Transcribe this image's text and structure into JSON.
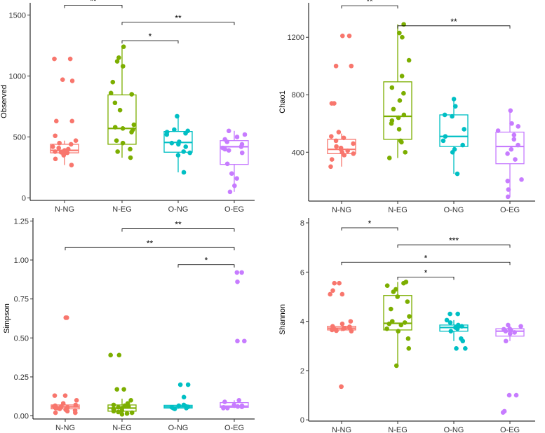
{
  "colors": {
    "N-NG": "#F8766D",
    "N-EG": "#7CAE00",
    "O-NG": "#00BFC4",
    "O-EG": "#C77CFF"
  },
  "chart_data": [
    {
      "type": "box",
      "ylabel": "Observed",
      "categories": [
        "N-NG",
        "N-EG",
        "O-NG",
        "O-EG"
      ],
      "ylim": [
        -20,
        1600
      ],
      "yticks": [
        0,
        500,
        1000,
        1500
      ],
      "yticklabels": [
        "0",
        "500",
        "1000",
        "1500"
      ],
      "boxes": [
        {
          "q1": 370,
          "median": 390,
          "q3": 440,
          "low": 270,
          "high": 470
        },
        {
          "q1": 440,
          "median": 570,
          "q3": 845,
          "low": 330,
          "high": 1240
        },
        {
          "q1": 375,
          "median": 455,
          "q3": 545,
          "low": 210,
          "high": 670
        },
        {
          "q1": 275,
          "median": 420,
          "q3": 470,
          "low": 50,
          "high": 550
        }
      ],
      "points": [
        [
          1140,
          1140,
          970,
          960,
          630,
          630,
          510,
          470,
          450,
          440,
          420,
          410,
          400,
          390,
          380,
          375,
          370,
          360,
          350,
          320,
          270
        ],
        [
          1240,
          1150,
          1120,
          1080,
          950,
          860,
          850,
          780,
          720,
          600,
          580,
          570,
          560,
          540,
          470,
          450,
          400,
          380,
          330
        ],
        [
          670,
          560,
          550,
          540,
          530,
          520,
          460,
          450,
          440,
          420,
          380,
          370,
          350,
          210
        ],
        [
          550,
          520,
          500,
          480,
          460,
          440,
          420,
          410,
          400,
          390,
          370,
          280,
          200,
          160,
          100,
          50
        ]
      ],
      "comparisons": [
        {
          "from": "N-NG",
          "to": "N-EG",
          "label": "**",
          "y": 1580
        },
        {
          "from": "N-EG",
          "to": "O-EG",
          "label": "**",
          "y": 1440
        },
        {
          "from": "N-EG",
          "to": "O-NG",
          "label": "*",
          "y": 1290
        }
      ]
    },
    {
      "type": "box",
      "ylabel": "Chao1",
      "categories": [
        "N-NG",
        "N-EG",
        "O-NG",
        "O-EG"
      ],
      "ylim": [
        60,
        1440
      ],
      "yticks": [
        400,
        800,
        1200
      ],
      "yticklabels": [
        "400",
        "800",
        "1200"
      ],
      "boxes": [
        {
          "q1": 390,
          "median": 420,
          "q3": 490,
          "low": 300,
          "high": 530
        },
        {
          "q1": 490,
          "median": 650,
          "q3": 890,
          "low": 360,
          "high": 1290
        },
        {
          "q1": 440,
          "median": 510,
          "q3": 660,
          "low": 250,
          "high": 770
        },
        {
          "q1": 320,
          "median": 440,
          "q3": 540,
          "low": 90,
          "high": 690
        }
      ],
      "points": [
        [
          1210,
          1210,
          1000,
          1000,
          740,
          740,
          540,
          510,
          500,
          480,
          460,
          440,
          430,
          420,
          410,
          400,
          390,
          380,
          350,
          300
        ],
        [
          1290,
          1230,
          1200,
          1040,
          930,
          850,
          810,
          760,
          700,
          660,
          640,
          620,
          600,
          560,
          480,
          470,
          400,
          360
        ],
        [
          770,
          720,
          660,
          650,
          560,
          510,
          480,
          450,
          420,
          400,
          250
        ],
        [
          690,
          600,
          580,
          550,
          520,
          490,
          450,
          420,
          390,
          350,
          210,
          200,
          140,
          90
        ]
      ],
      "comparisons": [
        {
          "from": "N-NG",
          "to": "N-EG",
          "label": "**",
          "y": 1420
        },
        {
          "from": "N-EG",
          "to": "O-EG",
          "label": "**",
          "y": 1280
        }
      ]
    },
    {
      "type": "box",
      "ylabel": "Simpson",
      "categories": [
        "N-NG",
        "N-EG",
        "O-NG",
        "O-EG"
      ],
      "ylim": [
        -0.02,
        1.27
      ],
      "yticks": [
        0.0,
        0.25,
        0.5,
        0.75,
        1.0,
        1.25
      ],
      "yticklabels": [
        "0.00",
        "0.25",
        "0.50",
        "0.75",
        "1.00",
        "1.25"
      ],
      "boxes": [
        {
          "q1": 0.045,
          "median": 0.058,
          "q3": 0.07,
          "low": 0.03,
          "high": 0.075
        },
        {
          "q1": 0.03,
          "median": 0.05,
          "q3": 0.07,
          "low": 0.01,
          "high": 0.11
        },
        {
          "q1": 0.05,
          "median": 0.058,
          "q3": 0.068,
          "low": 0.045,
          "high": 0.075
        },
        {
          "q1": 0.055,
          "median": 0.062,
          "q3": 0.085,
          "low": 0.05,
          "high": 0.1
        }
      ],
      "points": [
        [
          0.63,
          0.63,
          0.13,
          0.13,
          0.1,
          0.08,
          0.07,
          0.065,
          0.06,
          0.06,
          0.055,
          0.05,
          0.05,
          0.045,
          0.04,
          0.035,
          0.03,
          0.02,
          0.02
        ],
        [
          0.39,
          0.39,
          0.17,
          0.17,
          0.1,
          0.08,
          0.07,
          0.065,
          0.06,
          0.055,
          0.05,
          0.045,
          0.04,
          0.035,
          0.03,
          0.025,
          0.02,
          0.015,
          0.01
        ],
        [
          0.2,
          0.2,
          0.12,
          0.07,
          0.065,
          0.06,
          0.058,
          0.055,
          0.05,
          0.05,
          0.045
        ],
        [
          0.92,
          0.92,
          0.86,
          0.48,
          0.48,
          0.1,
          0.09,
          0.07,
          0.065,
          0.06,
          0.058,
          0.055,
          0.05,
          0.05
        ]
      ],
      "comparisons": [
        {
          "from": "N-EG",
          "to": "O-EG",
          "label": "**",
          "y": 1.2
        },
        {
          "from": "N-NG",
          "to": "O-EG",
          "label": "**",
          "y": 1.08
        },
        {
          "from": "O-NG",
          "to": "O-EG",
          "label": "*",
          "y": 0.97
        }
      ]
    },
    {
      "type": "box",
      "ylabel": "Shannon",
      "categories": [
        "N-NG",
        "N-EG",
        "O-NG",
        "O-EG"
      ],
      "ylim": [
        -0.05,
        8.2
      ],
      "yticks": [
        0,
        2,
        4,
        6,
        8
      ],
      "yticklabels": [
        "0",
        "2",
        "4",
        "6",
        "8"
      ],
      "boxes": [
        {
          "q1": 3.65,
          "median": 3.72,
          "q3": 3.8,
          "low": 3.6,
          "high": 3.85
        },
        {
          "q1": 3.65,
          "median": 3.92,
          "q3": 5.05,
          "low": 2.2,
          "high": 5.6
        },
        {
          "q1": 3.6,
          "median": 3.75,
          "q3": 3.85,
          "low": 3.2,
          "high": 4.05
        },
        {
          "q1": 3.4,
          "median": 3.6,
          "q3": 3.7,
          "low": 3.2,
          "high": 3.8
        }
      ],
      "points": [
        [
          5.55,
          5.55,
          5.25,
          5.1,
          5.1,
          4.0,
          3.9,
          3.8,
          3.78,
          3.75,
          3.72,
          3.7,
          3.68,
          3.65,
          3.62,
          3.6,
          1.35,
          1.35
        ],
        [
          5.6,
          5.55,
          5.45,
          5.3,
          5.2,
          5.0,
          4.8,
          4.5,
          4.2,
          4.0,
          3.95,
          3.9,
          3.85,
          3.7,
          3.6,
          3.3,
          2.9,
          2.2
        ],
        [
          4.3,
          4.3,
          4.05,
          3.95,
          3.85,
          3.8,
          3.75,
          3.7,
          3.6,
          3.3,
          3.2,
          2.9,
          2.9
        ],
        [
          3.85,
          3.8,
          3.7,
          3.68,
          3.65,
          3.6,
          3.55,
          3.5,
          3.2,
          1.0,
          1.0,
          0.35,
          0.3
        ]
      ],
      "comparisons": [
        {
          "from": "N-NG",
          "to": "N-EG",
          "label": "*",
          "y": 7.8
        },
        {
          "from": "N-EG",
          "to": "O-EG",
          "label": "***",
          "y": 7.1
        },
        {
          "from": "N-NG",
          "to": "O-EG",
          "label": "*",
          "y": 6.4
        },
        {
          "from": "N-EG",
          "to": "O-NG",
          "label": "*",
          "y": 5.8
        }
      ]
    }
  ]
}
